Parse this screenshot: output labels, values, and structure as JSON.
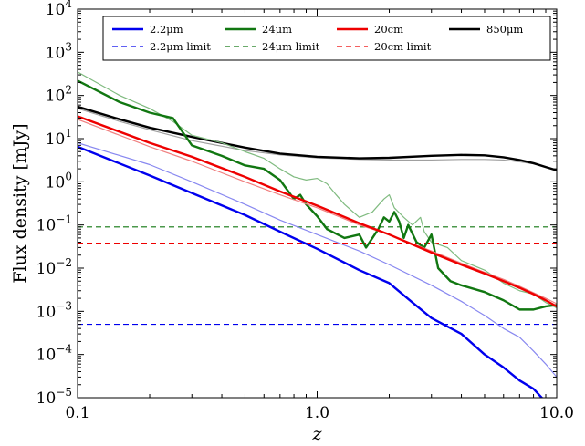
{
  "chart_data": {
    "type": "line",
    "xlabel": "z",
    "ylabel": "Flux density [mJy]",
    "x_scale": "log",
    "y_scale": "log",
    "xlim": [
      0.1,
      10.0
    ],
    "ylim": [
      1e-05,
      10000.0
    ],
    "x_ticks": [
      {
        "value": 0.1,
        "label": "0.1"
      },
      {
        "value": 1.0,
        "label": "1.0"
      },
      {
        "value": 10.0,
        "label": "10.0"
      }
    ],
    "y_ticks": [
      {
        "value": 1e-05,
        "base": "10",
        "exp": "−5"
      },
      {
        "value": 0.0001,
        "base": "10",
        "exp": "−4"
      },
      {
        "value": 0.001,
        "base": "10",
        "exp": "−3"
      },
      {
        "value": 0.01,
        "base": "10",
        "exp": "−2"
      },
      {
        "value": 0.1,
        "base": "10",
        "exp": "−1"
      },
      {
        "value": 1.0,
        "base": "10",
        "exp": "0"
      },
      {
        "value": 10.0,
        "base": "10",
        "exp": "1"
      },
      {
        "value": 100.0,
        "base": "10",
        "exp": "2"
      },
      {
        "value": 1000.0,
        "base": "10",
        "exp": "3"
      },
      {
        "value": 10000.0,
        "base": "10",
        "exp": "4"
      }
    ],
    "legend": {
      "placement": "top",
      "columns": 4,
      "entries": [
        {
          "label": "2.2μm",
          "color": "#0000ee",
          "style": "solid"
        },
        {
          "label": "24μm",
          "color": "#117711",
          "style": "solid"
        },
        {
          "label": "20cm",
          "color": "#ee0000",
          "style": "solid"
        },
        {
          "label": "850μm",
          "color": "#000000",
          "style": "solid"
        },
        {
          "label": "2.2μm limit",
          "color": "#0000ee",
          "style": "dashed"
        },
        {
          "label": "24μm limit",
          "color": "#117711",
          "style": "dashed"
        },
        {
          "label": "20cm limit",
          "color": "#ee0000",
          "style": "dashed"
        }
      ]
    },
    "limits": [
      {
        "name": "2.2μm limit",
        "color": "#0000ee",
        "y": 0.0005
      },
      {
        "name": "24μm limit",
        "color": "#117711",
        "y": 0.09
      },
      {
        "name": "20cm limit",
        "color": "#ee0000",
        "y": 0.038
      }
    ],
    "series": [
      {
        "name": "850μm",
        "color": "#a0a0a0",
        "width": 1.2,
        "thin": true,
        "points": [
          [
            0.1,
            50
          ],
          [
            0.15,
            25
          ],
          [
            0.2,
            16
          ],
          [
            0.3,
            9
          ],
          [
            0.5,
            5.3
          ],
          [
            0.7,
            4.2
          ],
          [
            1.0,
            3.6
          ],
          [
            1.5,
            3.3
          ],
          [
            2.0,
            3.2
          ],
          [
            3.0,
            3.2
          ],
          [
            4.0,
            3.3
          ],
          [
            5.0,
            3.3
          ],
          [
            6.0,
            3.2
          ],
          [
            7.0,
            2.9
          ],
          [
            8.0,
            2.6
          ],
          [
            9.0,
            2.2
          ],
          [
            10.0,
            1.9
          ]
        ]
      },
      {
        "name": "850μm",
        "color": "#000000",
        "width": 2.4,
        "points": [
          [
            0.1,
            55
          ],
          [
            0.15,
            28
          ],
          [
            0.2,
            18
          ],
          [
            0.3,
            11
          ],
          [
            0.5,
            6.2
          ],
          [
            0.7,
            4.5
          ],
          [
            1.0,
            3.8
          ],
          [
            1.5,
            3.5
          ],
          [
            2.0,
            3.6
          ],
          [
            3.0,
            4.0
          ],
          [
            4.0,
            4.2
          ],
          [
            5.0,
            4.1
          ],
          [
            6.0,
            3.7
          ],
          [
            7.0,
            3.2
          ],
          [
            8.0,
            2.7
          ],
          [
            9.0,
            2.2
          ],
          [
            10.0,
            1.85
          ]
        ]
      },
      {
        "name": "2.2μm",
        "color": "#8888f0",
        "width": 1.2,
        "thin": true,
        "points": [
          [
            0.1,
            8
          ],
          [
            0.2,
            2.5
          ],
          [
            0.3,
            1.0
          ],
          [
            0.5,
            0.3
          ],
          [
            0.7,
            0.13
          ],
          [
            1.0,
            0.06
          ],
          [
            1.5,
            0.025
          ],
          [
            2.0,
            0.012
          ],
          [
            3.0,
            0.004
          ],
          [
            4.0,
            0.0017
          ],
          [
            5.0,
            0.0008
          ],
          [
            6.0,
            0.0004
          ],
          [
            7.0,
            0.00025
          ],
          [
            8.0,
            0.00012
          ],
          [
            9.0,
            6e-05
          ],
          [
            10.0,
            3e-05
          ]
        ]
      },
      {
        "name": "2.2μm",
        "color": "#0000ee",
        "width": 2.4,
        "points": [
          [
            0.1,
            6.5
          ],
          [
            0.2,
            1.4
          ],
          [
            0.3,
            0.55
          ],
          [
            0.5,
            0.17
          ],
          [
            0.7,
            0.07
          ],
          [
            1.0,
            0.028
          ],
          [
            1.5,
            0.009
          ],
          [
            2.0,
            0.0045
          ],
          [
            2.5,
            0.0016
          ],
          [
            3.0,
            0.0007
          ],
          [
            4.0,
            0.0003
          ],
          [
            5.0,
            0.0001
          ],
          [
            6.0,
            5e-05
          ],
          [
            7.0,
            2.5e-05
          ],
          [
            8.0,
            1.6e-05
          ],
          [
            9.0,
            8e-06
          ],
          [
            10.0,
            5e-06
          ]
        ]
      },
      {
        "name": "24μm",
        "color": "#80bb80",
        "width": 1.2,
        "thin": true,
        "points": [
          [
            0.1,
            350
          ],
          [
            0.15,
            100
          ],
          [
            0.2,
            50
          ],
          [
            0.25,
            25
          ],
          [
            0.3,
            12
          ],
          [
            0.4,
            8
          ],
          [
            0.5,
            5
          ],
          [
            0.6,
            3.5
          ],
          [
            0.7,
            2
          ],
          [
            0.8,
            1.3
          ],
          [
            0.9,
            1.1
          ],
          [
            1.0,
            1.2
          ],
          [
            1.1,
            0.9
          ],
          [
            1.2,
            0.5
          ],
          [
            1.3,
            0.3
          ],
          [
            1.5,
            0.15
          ],
          [
            1.7,
            0.2
          ],
          [
            1.9,
            0.4
          ],
          [
            2.0,
            0.5
          ],
          [
            2.1,
            0.25
          ],
          [
            2.3,
            0.15
          ],
          [
            2.5,
            0.1
          ],
          [
            2.7,
            0.15
          ],
          [
            2.8,
            0.07
          ],
          [
            3.0,
            0.04
          ],
          [
            3.5,
            0.03
          ],
          [
            4.0,
            0.015
          ],
          [
            5.0,
            0.009
          ],
          [
            6.0,
            0.0045
          ],
          [
            7.0,
            0.003
          ],
          [
            8.0,
            0.0025
          ],
          [
            9.0,
            0.0016
          ],
          [
            10.0,
            0.0012
          ]
        ]
      },
      {
        "name": "24μm",
        "color": "#117711",
        "width": 2.4,
        "points": [
          [
            0.1,
            220
          ],
          [
            0.15,
            70
          ],
          [
            0.2,
            40
          ],
          [
            0.25,
            30
          ],
          [
            0.3,
            7
          ],
          [
            0.4,
            4
          ],
          [
            0.5,
            2.4
          ],
          [
            0.6,
            2
          ],
          [
            0.7,
            1.1
          ],
          [
            0.8,
            0.4
          ],
          [
            0.85,
            0.5
          ],
          [
            0.9,
            0.3
          ],
          [
            1.0,
            0.16
          ],
          [
            1.1,
            0.08
          ],
          [
            1.3,
            0.05
          ],
          [
            1.5,
            0.06
          ],
          [
            1.6,
            0.03
          ],
          [
            1.8,
            0.08
          ],
          [
            1.9,
            0.15
          ],
          [
            2.0,
            0.12
          ],
          [
            2.1,
            0.2
          ],
          [
            2.2,
            0.12
          ],
          [
            2.3,
            0.05
          ],
          [
            2.4,
            0.1
          ],
          [
            2.6,
            0.04
          ],
          [
            2.8,
            0.03
          ],
          [
            3.0,
            0.06
          ],
          [
            3.2,
            0.01
          ],
          [
            3.6,
            0.005
          ],
          [
            4.0,
            0.004
          ],
          [
            5.0,
            0.0028
          ],
          [
            6.0,
            0.0018
          ],
          [
            7.0,
            0.0011
          ],
          [
            8.0,
            0.0011
          ],
          [
            9.0,
            0.0013
          ],
          [
            10.0,
            0.0014
          ]
        ]
      },
      {
        "name": "20cm",
        "color": "#f08080",
        "width": 1.2,
        "thin": true,
        "points": [
          [
            0.1,
            28
          ],
          [
            0.2,
            6.5
          ],
          [
            0.3,
            3.0
          ],
          [
            0.5,
            1.0
          ],
          [
            0.7,
            0.5
          ],
          [
            1.0,
            0.25
          ],
          [
            1.5,
            0.1
          ],
          [
            2.0,
            0.06
          ],
          [
            3.0,
            0.025
          ],
          [
            4.0,
            0.013
          ],
          [
            5.0,
            0.008
          ],
          [
            6.0,
            0.0055
          ],
          [
            7.0,
            0.0038
          ],
          [
            8.0,
            0.0027
          ],
          [
            9.0,
            0.002
          ],
          [
            10.0,
            0.0015
          ]
        ]
      },
      {
        "name": "20cm",
        "color": "#ee0000",
        "width": 2.4,
        "points": [
          [
            0.1,
            33
          ],
          [
            0.2,
            8
          ],
          [
            0.3,
            3.8
          ],
          [
            0.5,
            1.3
          ],
          [
            0.7,
            0.6
          ],
          [
            1.0,
            0.28
          ],
          [
            1.5,
            0.11
          ],
          [
            2.0,
            0.06
          ],
          [
            3.0,
            0.023
          ],
          [
            4.0,
            0.012
          ],
          [
            5.0,
            0.0075
          ],
          [
            6.0,
            0.005
          ],
          [
            7.0,
            0.0035
          ],
          [
            8.0,
            0.0025
          ],
          [
            9.0,
            0.0018
          ],
          [
            10.0,
            0.0013
          ]
        ]
      }
    ]
  }
}
